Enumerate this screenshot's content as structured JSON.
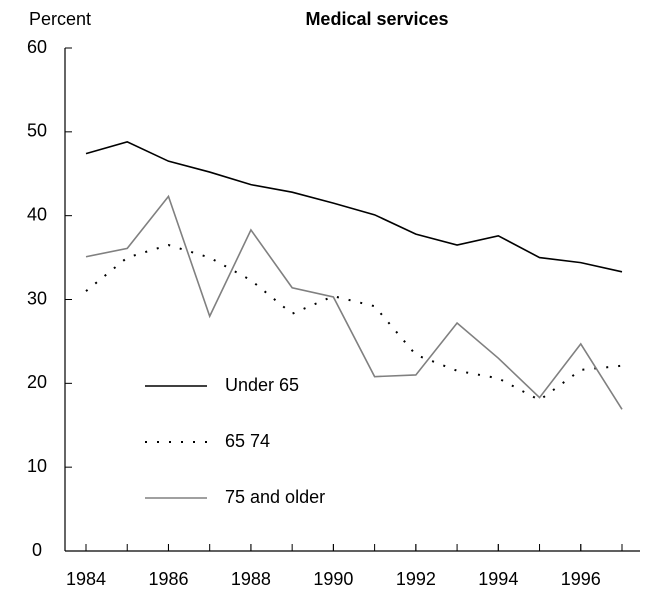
{
  "chart_data": {
    "type": "line",
    "title": "Medical services",
    "y_label": "Percent",
    "x": [
      1984,
      1985,
      1986,
      1987,
      1988,
      1989,
      1990,
      1991,
      1992,
      1993,
      1994,
      1995,
      1996,
      1997
    ],
    "series": [
      {
        "name": "Under 65",
        "color": "#000000",
        "dash": "solid",
        "values": [
          47.4,
          48.8,
          46.5,
          45.2,
          43.7,
          42.8,
          41.5,
          40.1,
          37.8,
          36.5,
          37.6,
          35.0,
          34.4,
          33.3
        ]
      },
      {
        "name": "65  74",
        "color": "#000000",
        "dash": "dotted",
        "values": [
          31.0,
          35.0,
          36.5,
          35.0,
          32.3,
          28.3,
          30.4,
          29.2,
          23.4,
          21.5,
          20.6,
          18.0,
          21.6,
          22.1
        ]
      },
      {
        "name": "75 and older",
        "color": "#808080",
        "dash": "solid",
        "values": [
          35.1,
          36.1,
          42.3,
          28.0,
          38.3,
          31.4,
          30.3,
          20.8,
          21.0,
          27.2,
          23.0,
          18.3,
          24.7,
          16.9
        ]
      }
    ],
    "xlim": [
      1984,
      1997
    ],
    "xticks": [
      1984,
      1986,
      1988,
      1990,
      1992,
      1994,
      1996
    ],
    "ylim": [
      0,
      60
    ],
    "yticks": [
      0,
      10,
      20,
      30,
      40,
      50,
      60
    ],
    "grid": false,
    "legend": "lower-left"
  }
}
